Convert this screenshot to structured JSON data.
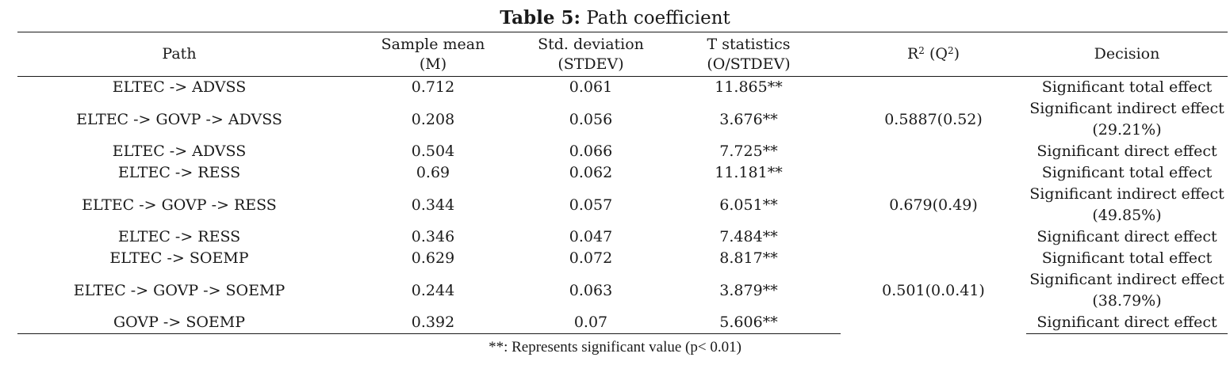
{
  "caption": {
    "label": "Table 5:",
    "title": "Path coefficient"
  },
  "header": {
    "path": "Path",
    "mean_line1": "Sample mean",
    "mean_line2": "(M)",
    "sd_line1": "Std. deviation",
    "sd_line2": "(STDEV)",
    "t_line1": "T statistics",
    "t_line2": "(O/STDEV)",
    "r2_base": "R",
    "r2_sup": "2",
    "r2_mid": " (Q",
    "q2_sup": "2",
    "r2_end": ")",
    "decision": "Decision"
  },
  "rows": [
    {
      "path": "ELTEC -> ADVSS",
      "mean": "0.712",
      "sd": "0.061",
      "t": "11.865**",
      "decision": "Significant total effect"
    },
    {
      "path": "ELTEC -> GOVP -> ADVSS",
      "mean": "0.208",
      "sd": "0.056",
      "t": "3.676**",
      "decision_line1": "Significant indirect effect",
      "decision_line2": "(29.21%)"
    },
    {
      "path": "ELTEC -> ADVSS",
      "mean": "0.504",
      "sd": "0.066",
      "t": "7.725**",
      "decision": "Significant direct effect"
    },
    {
      "path": "ELTEC -> RESS",
      "mean": "0.69",
      "sd": "0.062",
      "t": "11.181**",
      "decision": "Significant total effect"
    },
    {
      "path": "ELTEC -> GOVP -> RESS",
      "mean": "0.344",
      "sd": "0.057",
      "t": "6.051**",
      "decision_line1": "Significant indirect effect",
      "decision_line2": "(49.85%)"
    },
    {
      "path": "ELTEC -> RESS",
      "mean": "0.346",
      "sd": "0.047",
      "t": "7.484**",
      "decision": "Significant direct effect"
    },
    {
      "path": "ELTEC -> SOEMP",
      "mean": "0.629",
      "sd": "0.072",
      "t": "8.817**",
      "decision": "Significant total effect"
    },
    {
      "path": "ELTEC -> GOVP -> SOEMP",
      "mean": "0.244",
      "sd": "0.063",
      "t": "3.879**",
      "decision_line1": "Significant indirect effect",
      "decision_line2": "(38.79%)"
    },
    {
      "path": "GOVP -> SOEMP",
      "mean": "0.392",
      "sd": "0.07",
      "t": "5.606**",
      "decision": "Significant direct effect"
    }
  ],
  "r2_groups": [
    "0.5887(0.52)",
    "0.679(0.49)",
    "0.501(0.0.41)"
  ],
  "footnote": "**: Represents significant value (p< 0.01)"
}
